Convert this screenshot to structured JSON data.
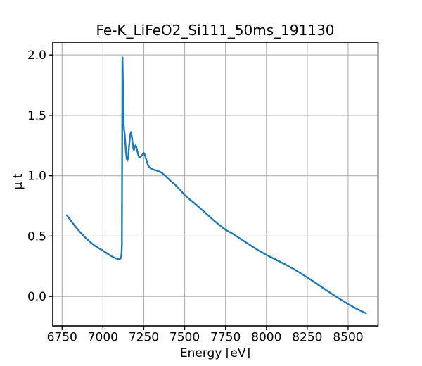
{
  "figure": {
    "background_color": "#ffffff",
    "text_color": "#000000"
  },
  "chart_data": {
    "type": "line",
    "title": "Fe-K_LiFeO2_Si111_50ms_191130",
    "xlabel": "Energy [eV]",
    "ylabel": "μ t",
    "xlim": [
      6693,
      8683
    ],
    "ylim": [
      -0.244,
      2.106
    ],
    "xticks": [
      6750,
      7000,
      7250,
      7500,
      7750,
      8000,
      8250,
      8500
    ],
    "xtick_labels": [
      "6750",
      "7000",
      "7250",
      "7500",
      "7750",
      "8000",
      "8250",
      "8500"
    ],
    "yticks": [
      0.0,
      0.5,
      1.0,
      1.5,
      2.0
    ],
    "ytick_labels": [
      "0.0",
      "0.5",
      "1.0",
      "1.5",
      "2.0"
    ],
    "grid": true,
    "grid_color": "#b0b0b0",
    "spine_color": "#000000",
    "line_color": "#1f77b4",
    "legend": "none",
    "series": [
      {
        "name": "mu_t_spectrum",
        "points": [
          [
            6779,
            0.672
          ],
          [
            6808,
            0.62
          ],
          [
            6836,
            0.572
          ],
          [
            6864,
            0.528
          ],
          [
            6892,
            0.487
          ],
          [
            6920,
            0.452
          ],
          [
            6948,
            0.422
          ],
          [
            6976,
            0.398
          ],
          [
            7004,
            0.376
          ],
          [
            7030,
            0.352
          ],
          [
            7055,
            0.331
          ],
          [
            7075,
            0.318
          ],
          [
            7090,
            0.31
          ],
          [
            7101,
            0.308
          ],
          [
            7108,
            0.314
          ],
          [
            7112,
            0.33
          ],
          [
            7114,
            0.355
          ],
          [
            7116,
            0.42
          ],
          [
            7118,
            1.5
          ],
          [
            7119,
            1.94
          ],
          [
            7120,
            1.98
          ],
          [
            7122,
            1.81
          ],
          [
            7124,
            1.56
          ],
          [
            7127,
            1.42
          ],
          [
            7130,
            1.375
          ],
          [
            7133,
            1.345
          ],
          [
            7137,
            1.268
          ],
          [
            7141,
            1.195
          ],
          [
            7146,
            1.138
          ],
          [
            7150,
            1.125
          ],
          [
            7155,
            1.165
          ],
          [
            7160,
            1.242
          ],
          [
            7166,
            1.33
          ],
          [
            7171,
            1.362
          ],
          [
            7176,
            1.33
          ],
          [
            7182,
            1.268
          ],
          [
            7187,
            1.22
          ],
          [
            7190,
            1.212
          ],
          [
            7194,
            1.236
          ],
          [
            7199,
            1.252
          ],
          [
            7204,
            1.24
          ],
          [
            7210,
            1.205
          ],
          [
            7216,
            1.172
          ],
          [
            7223,
            1.15
          ],
          [
            7231,
            1.158
          ],
          [
            7241,
            1.175
          ],
          [
            7251,
            1.188
          ],
          [
            7259,
            1.164
          ],
          [
            7267,
            1.122
          ],
          [
            7276,
            1.088
          ],
          [
            7285,
            1.068
          ],
          [
            7297,
            1.058
          ],
          [
            7310,
            1.05
          ],
          [
            7325,
            1.045
          ],
          [
            7342,
            1.036
          ],
          [
            7360,
            1.025
          ],
          [
            7385,
            0.995
          ],
          [
            7410,
            0.962
          ],
          [
            7440,
            0.928
          ],
          [
            7470,
            0.885
          ],
          [
            7500,
            0.84
          ],
          [
            7530,
            0.805
          ],
          [
            7560,
            0.772
          ],
          [
            7590,
            0.736
          ],
          [
            7620,
            0.7
          ],
          [
            7650,
            0.664
          ],
          [
            7680,
            0.628
          ],
          [
            7710,
            0.594
          ],
          [
            7750,
            0.552
          ],
          [
            7790,
            0.522
          ],
          [
            7830,
            0.487
          ],
          [
            7870,
            0.452
          ],
          [
            7910,
            0.417
          ],
          [
            7950,
            0.383
          ],
          [
            8000,
            0.344
          ],
          [
            8050,
            0.31
          ],
          [
            8100,
            0.276
          ],
          [
            8150,
            0.24
          ],
          [
            8200,
            0.2
          ],
          [
            8250,
            0.158
          ],
          [
            8300,
            0.113
          ],
          [
            8350,
            0.067
          ],
          [
            8400,
            0.022
          ],
          [
            8450,
            -0.022
          ],
          [
            8500,
            -0.063
          ],
          [
            8550,
            -0.102
          ],
          [
            8610,
            -0.14
          ]
        ]
      }
    ]
  }
}
